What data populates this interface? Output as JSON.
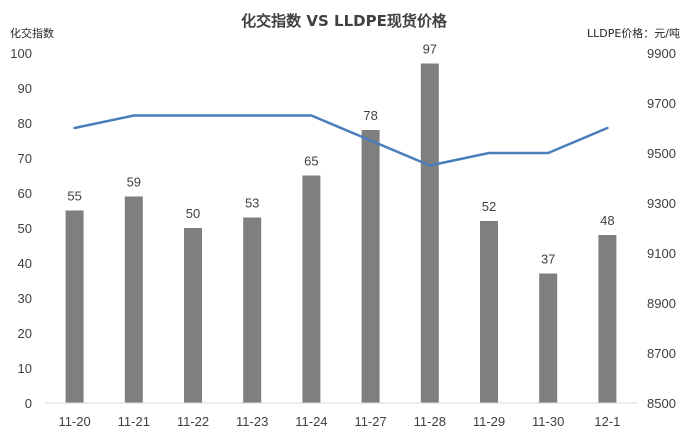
{
  "chart_data": {
    "type": "bar",
    "title": "化交指数 VS LLDPE现货价格",
    "ylabel": "化交指数",
    "y2label": "LLDPE价格：元/吨",
    "categories": [
      "11-20",
      "11-21",
      "11-22",
      "11-23",
      "11-24",
      "11-27",
      "11-28",
      "11-29",
      "11-30",
      "12-1"
    ],
    "ylim": [
      0,
      100
    ],
    "y2lim": [
      8500,
      9900
    ],
    "yticks": [
      "0",
      "10",
      "20",
      "30",
      "40",
      "50",
      "60",
      "70",
      "80",
      "90",
      "100"
    ],
    "y2ticks": [
      "8500",
      "8700",
      "8900",
      "9100",
      "9300",
      "9500",
      "9700",
      "9900"
    ],
    "series": [
      {
        "type": "bar",
        "axis": "left",
        "color": "#7f7f7f",
        "values": [
          55,
          59,
          50,
          53,
          65,
          78,
          97,
          52,
          37,
          48
        ]
      },
      {
        "type": "line",
        "axis": "right",
        "color": "#4a7ebb",
        "values": [
          9600,
          9650,
          9650,
          9650,
          9650,
          9550,
          9450,
          9500,
          9500,
          9600
        ]
      }
    ],
    "grid": false,
    "legend": "none"
  }
}
